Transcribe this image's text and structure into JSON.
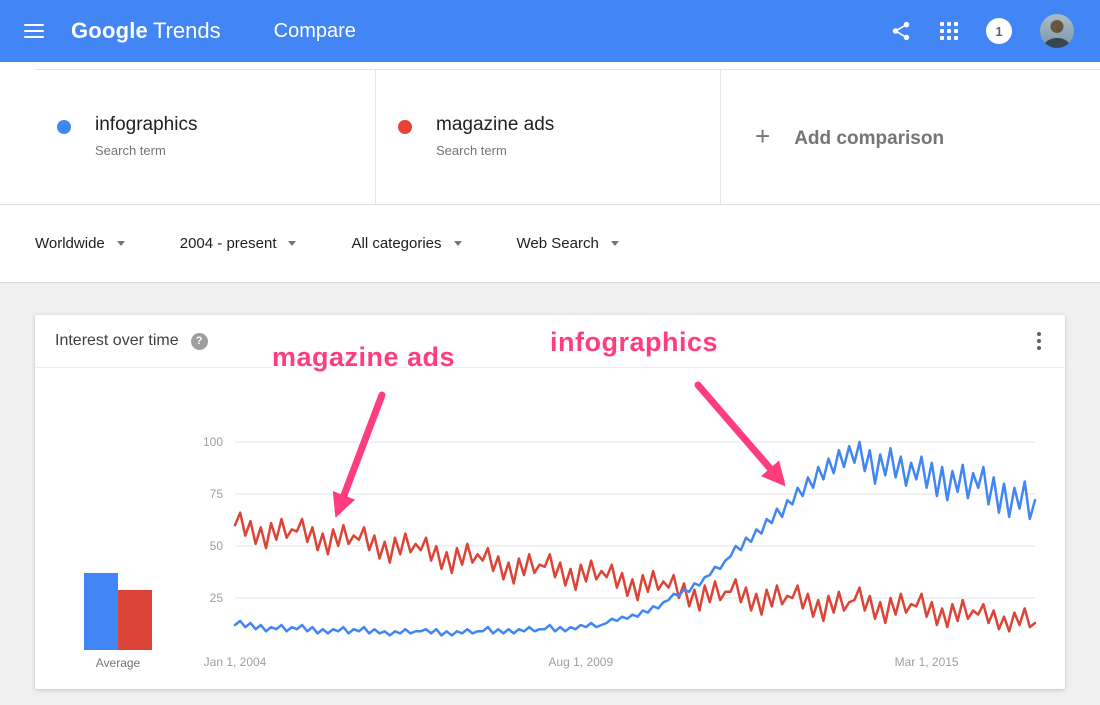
{
  "topbar": {
    "logo_primary": "Google",
    "logo_secondary": "Trends",
    "page_title": "Compare",
    "notification_count": "1",
    "bar_color": "#4285f4"
  },
  "comparison": {
    "terms": [
      {
        "label": "infographics",
        "sublabel": "Search term",
        "color": "#4285f4"
      },
      {
        "label": "magazine ads",
        "sublabel": "Search term",
        "color": "#ea4335"
      }
    ],
    "add_plus": "+",
    "add_label": "Add comparison"
  },
  "filters": [
    {
      "label": "Worldwide"
    },
    {
      "label": "2004 - present"
    },
    {
      "label": "All categories"
    },
    {
      "label": "Web Search"
    }
  ],
  "chart_card": {
    "title": "Interest over time",
    "help_glyph": "?"
  },
  "chart_data": {
    "type": "line",
    "title": "Interest over time",
    "x_unit": "month",
    "x_start": "Jan 2004",
    "x_end": "Dec 2016",
    "ylim": [
      0,
      100
    ],
    "yticks": [
      100,
      75,
      50,
      25
    ],
    "xticks": [
      {
        "label": "Jan 1, 2004",
        "index": 0
      },
      {
        "label": "Aug 1, 2009",
        "index": 67
      },
      {
        "label": "Mar 1, 2015",
        "index": 134
      }
    ],
    "grid": true,
    "average_label": "Average",
    "series": [
      {
        "name": "infographics",
        "color": "#4285f4",
        "average": 37,
        "values": [
          12,
          14,
          11,
          13,
          10,
          12,
          9,
          11,
          10,
          12,
          9,
          11,
          10,
          12,
          9,
          11,
          8,
          10,
          8,
          10,
          9,
          11,
          8,
          10,
          9,
          11,
          8,
          10,
          8,
          9,
          7,
          9,
          8,
          10,
          8,
          9,
          9,
          10,
          8,
          10,
          7,
          9,
          7,
          9,
          8,
          10,
          8,
          9,
          9,
          11,
          8,
          10,
          8,
          10,
          8,
          10,
          9,
          11,
          9,
          10,
          10,
          12,
          9,
          11,
          9,
          11,
          10,
          12,
          11,
          13,
          11,
          12,
          13,
          15,
          14,
          16,
          15,
          17,
          16,
          19,
          18,
          21,
          20,
          23,
          24,
          27,
          26,
          29,
          28,
          32,
          31,
          35,
          36,
          40,
          39,
          43,
          45,
          50,
          48,
          54,
          52,
          58,
          56,
          63,
          61,
          68,
          64,
          72,
          70,
          78,
          74,
          83,
          78,
          88,
          82,
          92,
          85,
          96,
          88,
          98,
          90,
          100,
          86,
          96,
          80,
          94,
          84,
          97,
          83,
          93,
          79,
          90,
          82,
          93,
          78,
          90,
          74,
          88,
          72,
          86,
          76,
          89,
          73,
          85,
          78,
          88,
          70,
          83,
          66,
          80,
          64,
          78,
          68,
          81,
          63,
          72
        ]
      },
      {
        "name": "magazine ads",
        "color": "#db4437",
        "average": 29,
        "values": [
          60,
          66,
          55,
          62,
          51,
          59,
          49,
          61,
          53,
          63,
          54,
          58,
          57,
          63,
          52,
          59,
          48,
          56,
          46,
          58,
          50,
          60,
          51,
          55,
          53,
          59,
          48,
          55,
          44,
          52,
          42,
          54,
          46,
          56,
          47,
          51,
          48,
          54,
          43,
          50,
          39,
          47,
          37,
          49,
          41,
          51,
          42,
          46,
          43,
          49,
          38,
          45,
          34,
          42,
          32,
          44,
          36,
          46,
          37,
          41,
          40,
          46,
          35,
          42,
          31,
          39,
          29,
          41,
          33,
          43,
          34,
          38,
          35,
          41,
          30,
          37,
          26,
          34,
          24,
          36,
          28,
          38,
          29,
          33,
          30,
          36,
          25,
          32,
          21,
          29,
          19,
          31,
          23,
          33,
          24,
          28,
          28,
          34,
          23,
          30,
          19,
          27,
          17,
          29,
          21,
          31,
          22,
          26,
          25,
          31,
          20,
          27,
          16,
          24,
          14,
          26,
          18,
          28,
          19,
          23,
          24,
          30,
          19,
          26,
          15,
          23,
          13,
          25,
          17,
          27,
          18,
          22,
          21,
          27,
          16,
          23,
          12,
          20,
          11,
          22,
          14,
          24,
          15,
          19,
          17,
          22,
          13,
          19,
          10,
          16,
          9,
          18,
          12,
          20,
          11,
          13
        ]
      }
    ],
    "annotations": [
      {
        "label": "magazine ads",
        "color": "#ff3d7c"
      },
      {
        "label": "infographics",
        "color": "#ff3d7c"
      }
    ]
  }
}
